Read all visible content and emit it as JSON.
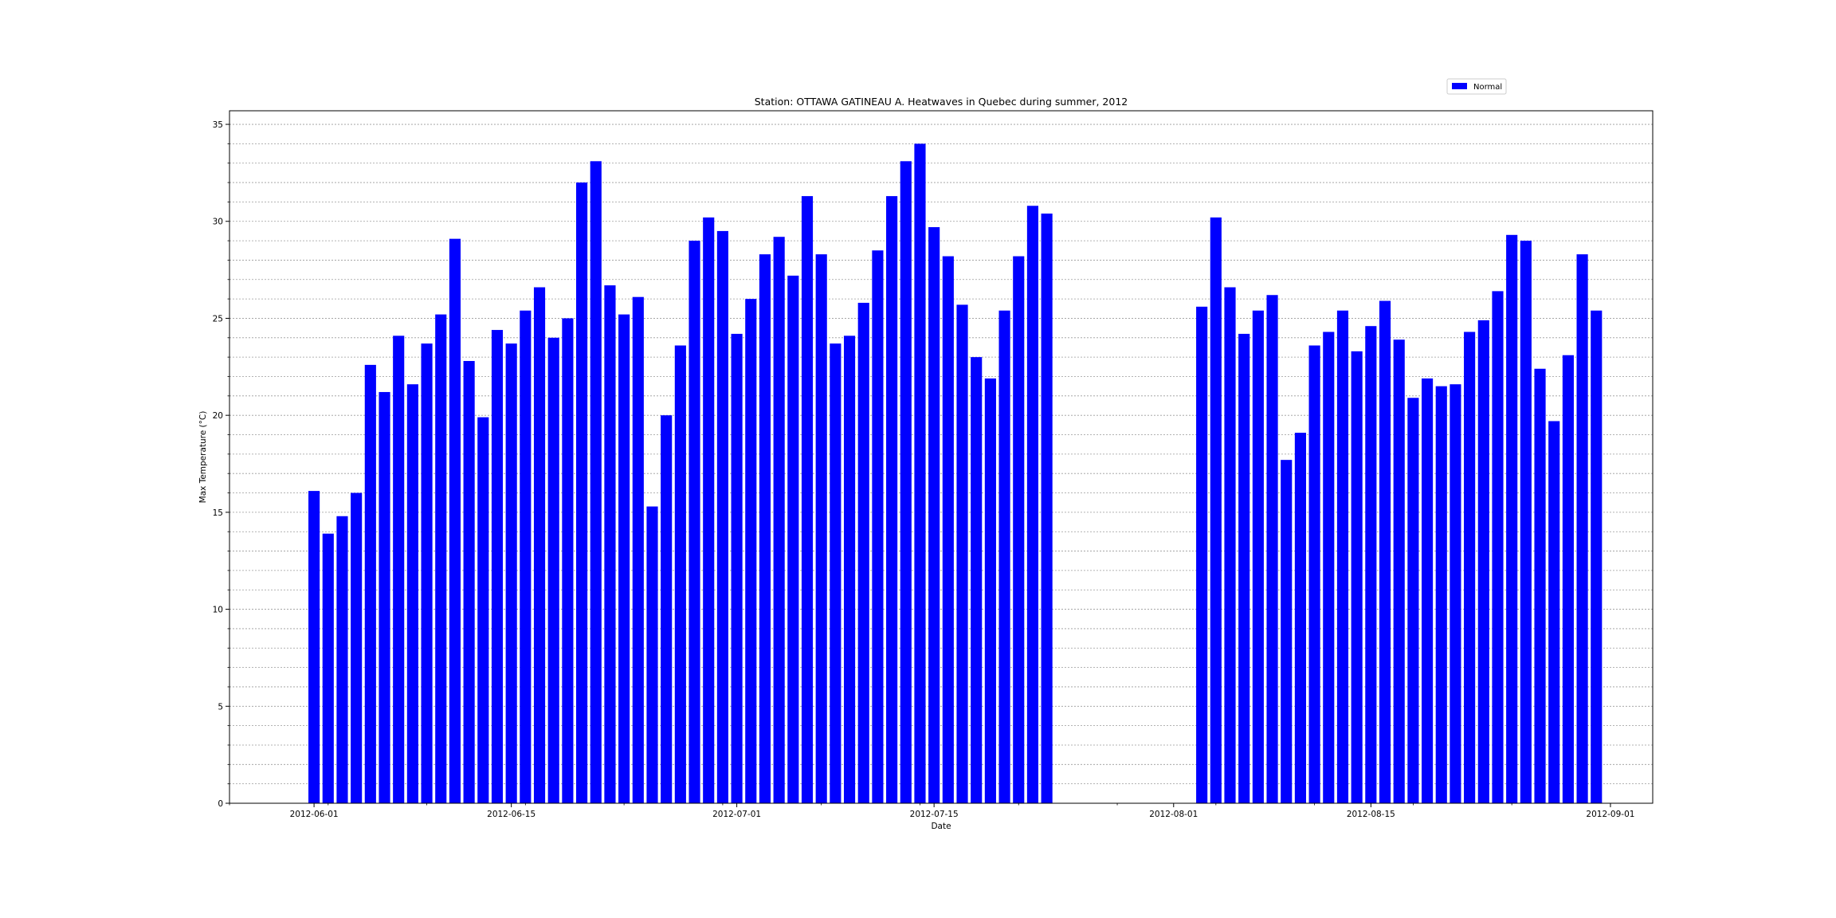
{
  "chart_data": {
    "type": "bar",
    "title": "Station: OTTAWA GATINEAU A. Heatwaves in Quebec during summer, 2012",
    "xlabel": "Date",
    "ylabel": "Max Temperature (°C)",
    "ylim": [
      0,
      35.7
    ],
    "yticks": [
      0,
      5,
      10,
      15,
      20,
      25,
      30,
      35
    ],
    "y_minor_step": 1,
    "grid": "horizontal dashed, major and minor",
    "xlim": [
      "2012-05-26",
      "2012-09-04"
    ],
    "xticks": [
      "2012-06-01",
      "2012-06-15",
      "2012-07-01",
      "2012-07-15",
      "2012-08-01",
      "2012-08-15",
      "2012-09-01"
    ],
    "bar_color": "#0000ff",
    "legend": {
      "placement": "upper-right, above plot",
      "entries": [
        "Normal"
      ]
    },
    "series": [
      {
        "name": "Normal",
        "x": [
          "2012-06-01",
          "2012-06-02",
          "2012-06-03",
          "2012-06-04",
          "2012-06-05",
          "2012-06-06",
          "2012-06-07",
          "2012-06-08",
          "2012-06-09",
          "2012-06-10",
          "2012-06-11",
          "2012-06-12",
          "2012-06-13",
          "2012-06-14",
          "2012-06-15",
          "2012-06-16",
          "2012-06-17",
          "2012-06-18",
          "2012-06-19",
          "2012-06-20",
          "2012-06-21",
          "2012-06-22",
          "2012-06-23",
          "2012-06-24",
          "2012-06-25",
          "2012-06-26",
          "2012-06-27",
          "2012-06-28",
          "2012-06-29",
          "2012-06-30",
          "2012-07-01",
          "2012-07-02",
          "2012-07-03",
          "2012-07-04",
          "2012-07-05",
          "2012-07-06",
          "2012-07-07",
          "2012-07-08",
          "2012-07-09",
          "2012-07-10",
          "2012-07-11",
          "2012-07-12",
          "2012-07-13",
          "2012-07-14",
          "2012-07-15",
          "2012-07-16",
          "2012-07-17",
          "2012-07-18",
          "2012-07-19",
          "2012-07-20",
          "2012-07-21",
          "2012-07-22",
          "2012-07-23",
          "2012-08-03",
          "2012-08-04",
          "2012-08-05",
          "2012-08-06",
          "2012-08-07",
          "2012-08-08",
          "2012-08-09",
          "2012-08-10",
          "2012-08-11",
          "2012-08-12",
          "2012-08-13",
          "2012-08-14",
          "2012-08-15",
          "2012-08-16",
          "2012-08-17",
          "2012-08-18",
          "2012-08-19",
          "2012-08-20",
          "2012-08-21",
          "2012-08-22",
          "2012-08-23",
          "2012-08-24",
          "2012-08-25",
          "2012-08-26",
          "2012-08-27",
          "2012-08-28",
          "2012-08-29",
          "2012-08-30",
          "2012-08-31"
        ],
        "values": [
          16.1,
          13.9,
          14.8,
          16.0,
          22.6,
          21.2,
          24.1,
          21.6,
          23.7,
          25.2,
          29.1,
          22.8,
          19.9,
          24.4,
          23.7,
          25.4,
          26.6,
          24.0,
          25.0,
          32.0,
          33.1,
          26.7,
          25.2,
          26.1,
          15.3,
          20.0,
          23.6,
          29.0,
          30.2,
          29.5,
          24.2,
          26.0,
          28.3,
          29.2,
          27.2,
          31.3,
          28.3,
          23.7,
          24.1,
          25.8,
          28.5,
          31.3,
          33.1,
          34.0,
          29.7,
          28.2,
          25.7,
          23.0,
          21.9,
          25.4,
          28.2,
          30.8,
          30.4,
          25.6,
          30.2,
          26.6,
          24.2,
          25.4,
          26.2,
          17.7,
          19.1,
          23.6,
          24.3,
          25.4,
          23.3,
          24.6,
          25.9,
          23.9,
          20.9,
          21.9,
          21.5,
          21.6,
          24.3,
          24.9,
          26.4,
          29.3,
          29.0,
          22.4,
          19.7,
          23.1,
          28.3,
          25.4
        ]
      }
    ]
  }
}
